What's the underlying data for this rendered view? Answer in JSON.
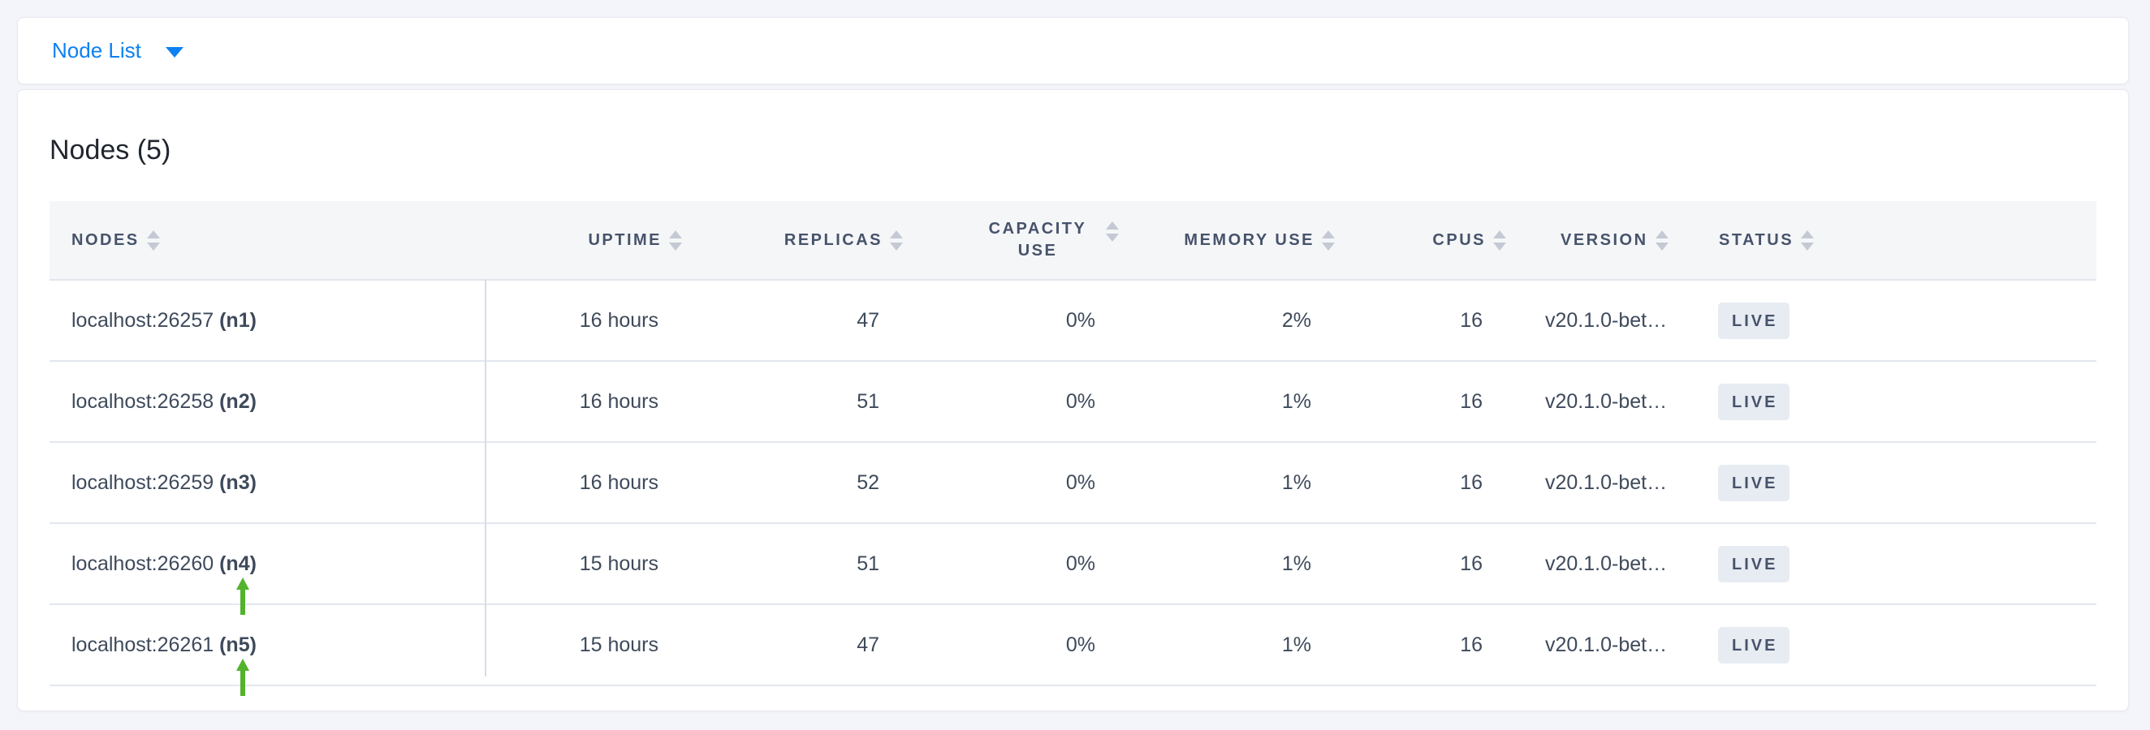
{
  "toolbar": {
    "dropdown_label": "Node List",
    "accent_color": "#0e80f0"
  },
  "panel": {
    "title": "Nodes (5)",
    "table": {
      "columns": [
        {
          "label": "NODES",
          "key": "nodes",
          "align": "left",
          "wrap": false
        },
        {
          "label": "UPTIME",
          "key": "uptime",
          "align": "right",
          "wrap": false
        },
        {
          "label": "REPLICAS",
          "key": "replicas",
          "align": "right",
          "wrap": false
        },
        {
          "label": "CAPACITY USE",
          "key": "capacity-use",
          "align": "right",
          "wrap": true
        },
        {
          "label": "MEMORY USE",
          "key": "memory-use",
          "align": "right",
          "wrap": false
        },
        {
          "label": "CPUS",
          "key": "cpus",
          "align": "right",
          "wrap": false
        },
        {
          "label": "VERSION",
          "key": "version",
          "align": "left",
          "wrap": false
        },
        {
          "label": "STATUS",
          "key": "status",
          "align": "left",
          "wrap": false
        }
      ],
      "rows": [
        {
          "address": "localhost:26257",
          "node_id": "(n1)",
          "uptime": "16 hours",
          "replicas": "47",
          "capacity_use": "0%",
          "memory_use": "2%",
          "cpus": "16",
          "version": "v20.1.0-bet…",
          "status": "LIVE",
          "annotated": false
        },
        {
          "address": "localhost:26258",
          "node_id": "(n2)",
          "uptime": "16 hours",
          "replicas": "51",
          "capacity_use": "0%",
          "memory_use": "1%",
          "cpus": "16",
          "version": "v20.1.0-bet…",
          "status": "LIVE",
          "annotated": false
        },
        {
          "address": "localhost:26259",
          "node_id": "(n3)",
          "uptime": "16 hours",
          "replicas": "52",
          "capacity_use": "0%",
          "memory_use": "1%",
          "cpus": "16",
          "version": "v20.1.0-bet…",
          "status": "LIVE",
          "annotated": false
        },
        {
          "address": "localhost:26260",
          "node_id": "(n4)",
          "uptime": "15 hours",
          "replicas": "51",
          "capacity_use": "0%",
          "memory_use": "1%",
          "cpus": "16",
          "version": "v20.1.0-bet…",
          "status": "LIVE",
          "annotated": true
        },
        {
          "address": "localhost:26261",
          "node_id": "(n5)",
          "uptime": "15 hours",
          "replicas": "47",
          "capacity_use": "0%",
          "memory_use": "1%",
          "cpus": "16",
          "version": "v20.1.0-bet…",
          "status": "LIVE",
          "annotated": true
        }
      ],
      "status_badge": {
        "background": "#e7ebf2",
        "text_color": "#47536b"
      },
      "annotation_arrow_color": "#53b32c"
    }
  }
}
